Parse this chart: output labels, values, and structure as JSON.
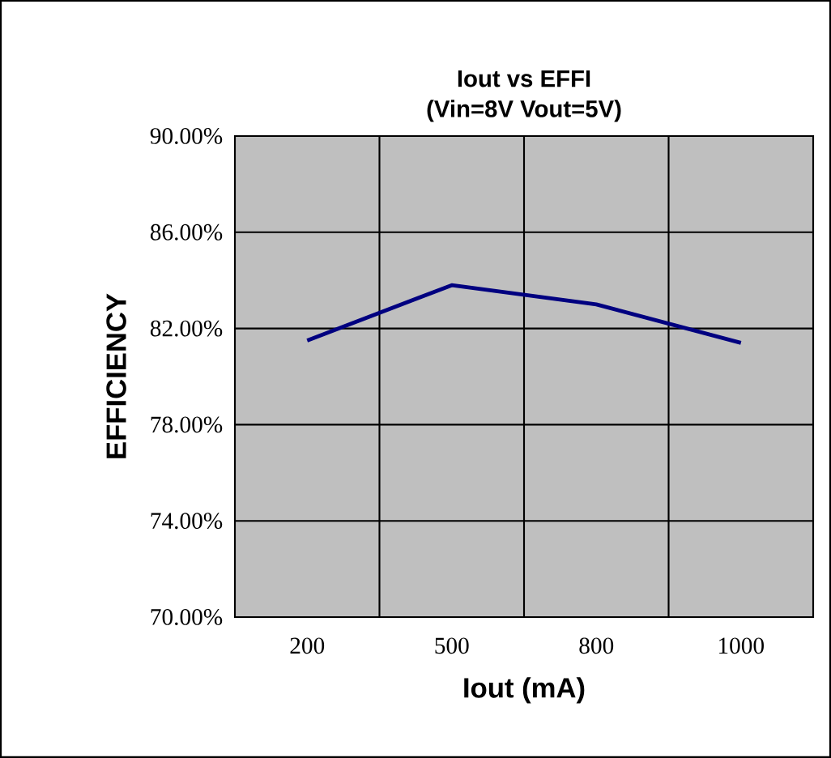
{
  "chart_data": {
    "type": "line",
    "title": "Iout vs EFFI",
    "subtitle": "(Vin=8V  Vout=5V)",
    "xlabel": "Iout (mA)",
    "ylabel": "EFFICIENCY",
    "categories": [
      "200",
      "500",
      "800",
      "1000"
    ],
    "series": [
      {
        "color": "#000080",
        "values": [
          81.5,
          83.8,
          83.0,
          81.4
        ]
      }
    ],
    "ylim": [
      70,
      90
    ],
    "yticks": [
      {
        "value": 70,
        "label": "70.00%"
      },
      {
        "value": 74,
        "label": "74.00%"
      },
      {
        "value": 78,
        "label": "78.00%"
      },
      {
        "value": 82,
        "label": "82.00%"
      },
      {
        "value": 86,
        "label": "86.00%"
      },
      {
        "value": 90,
        "label": "90.00%"
      }
    ],
    "grid": true,
    "marker": "none",
    "line_style": "solid"
  }
}
